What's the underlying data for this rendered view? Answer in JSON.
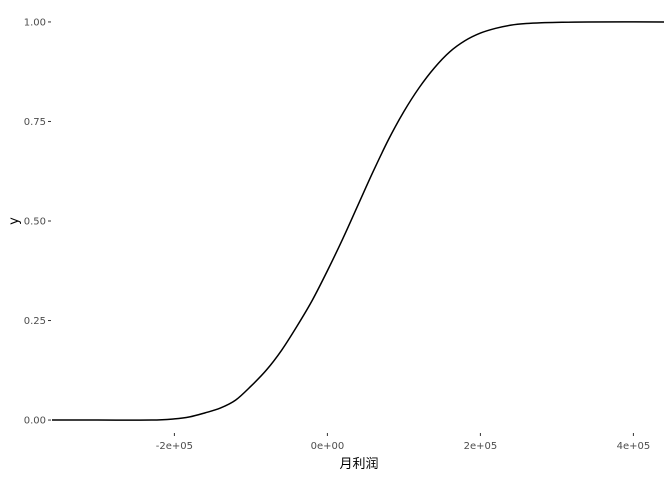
{
  "chart_data": {
    "type": "line",
    "title": "",
    "xlabel": "月利润",
    "ylabel": "y",
    "xlim": [
      -360000,
      440000
    ],
    "ylim": [
      -0.03,
      1.03
    ],
    "x_ticks": [
      {
        "value": -200000,
        "label": "-2e+05"
      },
      {
        "value": 0,
        "label": "0e+00"
      },
      {
        "value": 200000,
        "label": "2e+05"
      },
      {
        "value": 400000,
        "label": "4e+05"
      }
    ],
    "y_ticks": [
      {
        "value": 0.0,
        "label": "0.00"
      },
      {
        "value": 0.25,
        "label": "0.25"
      },
      {
        "value": 0.5,
        "label": "0.50"
      },
      {
        "value": 0.75,
        "label": "0.75"
      },
      {
        "value": 1.0,
        "label": "1.00"
      }
    ],
    "grid": false,
    "legend": "none",
    "series": [
      {
        "color": "#000000",
        "x": [
          -360000,
          -300000,
          -230000,
          -200000,
          -180000,
          -160000,
          -140000,
          -120000,
          -100000,
          -80000,
          -60000,
          -40000,
          -20000,
          0,
          20000,
          40000,
          60000,
          80000,
          100000,
          120000,
          140000,
          160000,
          180000,
          200000,
          220000,
          240000,
          260000,
          280000,
          300000,
          340000,
          440000
        ],
        "y": [
          0.0,
          0.0,
          0.0,
          0.003,
          0.008,
          0.018,
          0.03,
          0.05,
          0.085,
          0.125,
          0.175,
          0.235,
          0.3,
          0.375,
          0.455,
          0.54,
          0.625,
          0.705,
          0.775,
          0.835,
          0.885,
          0.925,
          0.953,
          0.972,
          0.984,
          0.992,
          0.996,
          0.998,
          0.999,
          1.0,
          1.0
        ]
      }
    ]
  }
}
